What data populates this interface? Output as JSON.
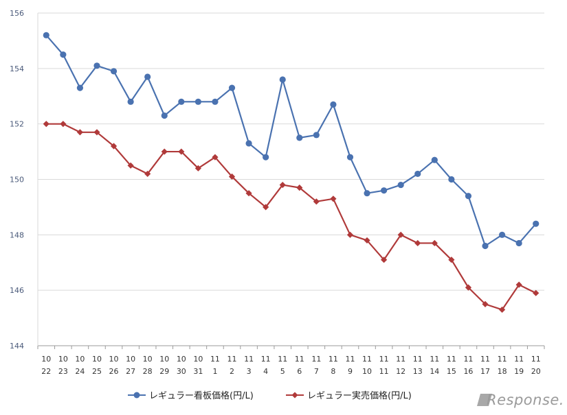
{
  "chart_data": {
    "type": "line",
    "categories": [
      [
        "10",
        "22"
      ],
      [
        "10",
        "23"
      ],
      [
        "10",
        "24"
      ],
      [
        "10",
        "25"
      ],
      [
        "10",
        "26"
      ],
      [
        "10",
        "27"
      ],
      [
        "10",
        "28"
      ],
      [
        "10",
        "29"
      ],
      [
        "10",
        "30"
      ],
      [
        "10",
        "31"
      ],
      [
        "11",
        "1"
      ],
      [
        "11",
        "2"
      ],
      [
        "11",
        "3"
      ],
      [
        "11",
        "4"
      ],
      [
        "11",
        "5"
      ],
      [
        "11",
        "6"
      ],
      [
        "11",
        "7"
      ],
      [
        "11",
        "8"
      ],
      [
        "11",
        "9"
      ],
      [
        "11",
        "10"
      ],
      [
        "11",
        "11"
      ],
      [
        "11",
        "12"
      ],
      [
        "11",
        "13"
      ],
      [
        "11",
        "14"
      ],
      [
        "11",
        "15"
      ],
      [
        "11",
        "16"
      ],
      [
        "11",
        "17"
      ],
      [
        "11",
        "18"
      ],
      [
        "11",
        "19"
      ],
      [
        "11",
        "20"
      ]
    ],
    "series": [
      {
        "name": "レギュラー看板価格(円/L)",
        "color": "#4a72b0",
        "marker": "circle",
        "values": [
          155.2,
          154.5,
          153.3,
          154.1,
          153.9,
          152.8,
          153.7,
          152.3,
          152.8,
          152.8,
          152.8,
          153.3,
          151.3,
          150.8,
          153.6,
          151.5,
          151.6,
          152.7,
          150.8,
          149.5,
          149.6,
          149.8,
          150.2,
          150.7,
          150.0,
          149.4,
          147.6,
          148.0,
          147.7,
          148.4
        ]
      },
      {
        "name": "レギュラー実売価格(円/L)",
        "color": "#b03a3a",
        "marker": "diamond",
        "values": [
          152.0,
          152.0,
          151.7,
          151.7,
          151.2,
          150.5,
          150.2,
          151.0,
          151.0,
          150.4,
          150.8,
          150.1,
          149.5,
          149.0,
          149.8,
          149.7,
          149.2,
          149.3,
          148.0,
          147.8,
          147.1,
          148.0,
          147.7,
          147.7,
          147.1,
          146.1,
          145.5,
          145.3,
          146.2,
          145.9
        ]
      }
    ],
    "yticks": [
      "144",
      "146",
      "148",
      "150",
      "152",
      "154",
      "156"
    ],
    "ylim": [
      144,
      156
    ],
    "grid": true,
    "legend_position": "bottom-center"
  },
  "watermark": {
    "text": "Response."
  }
}
